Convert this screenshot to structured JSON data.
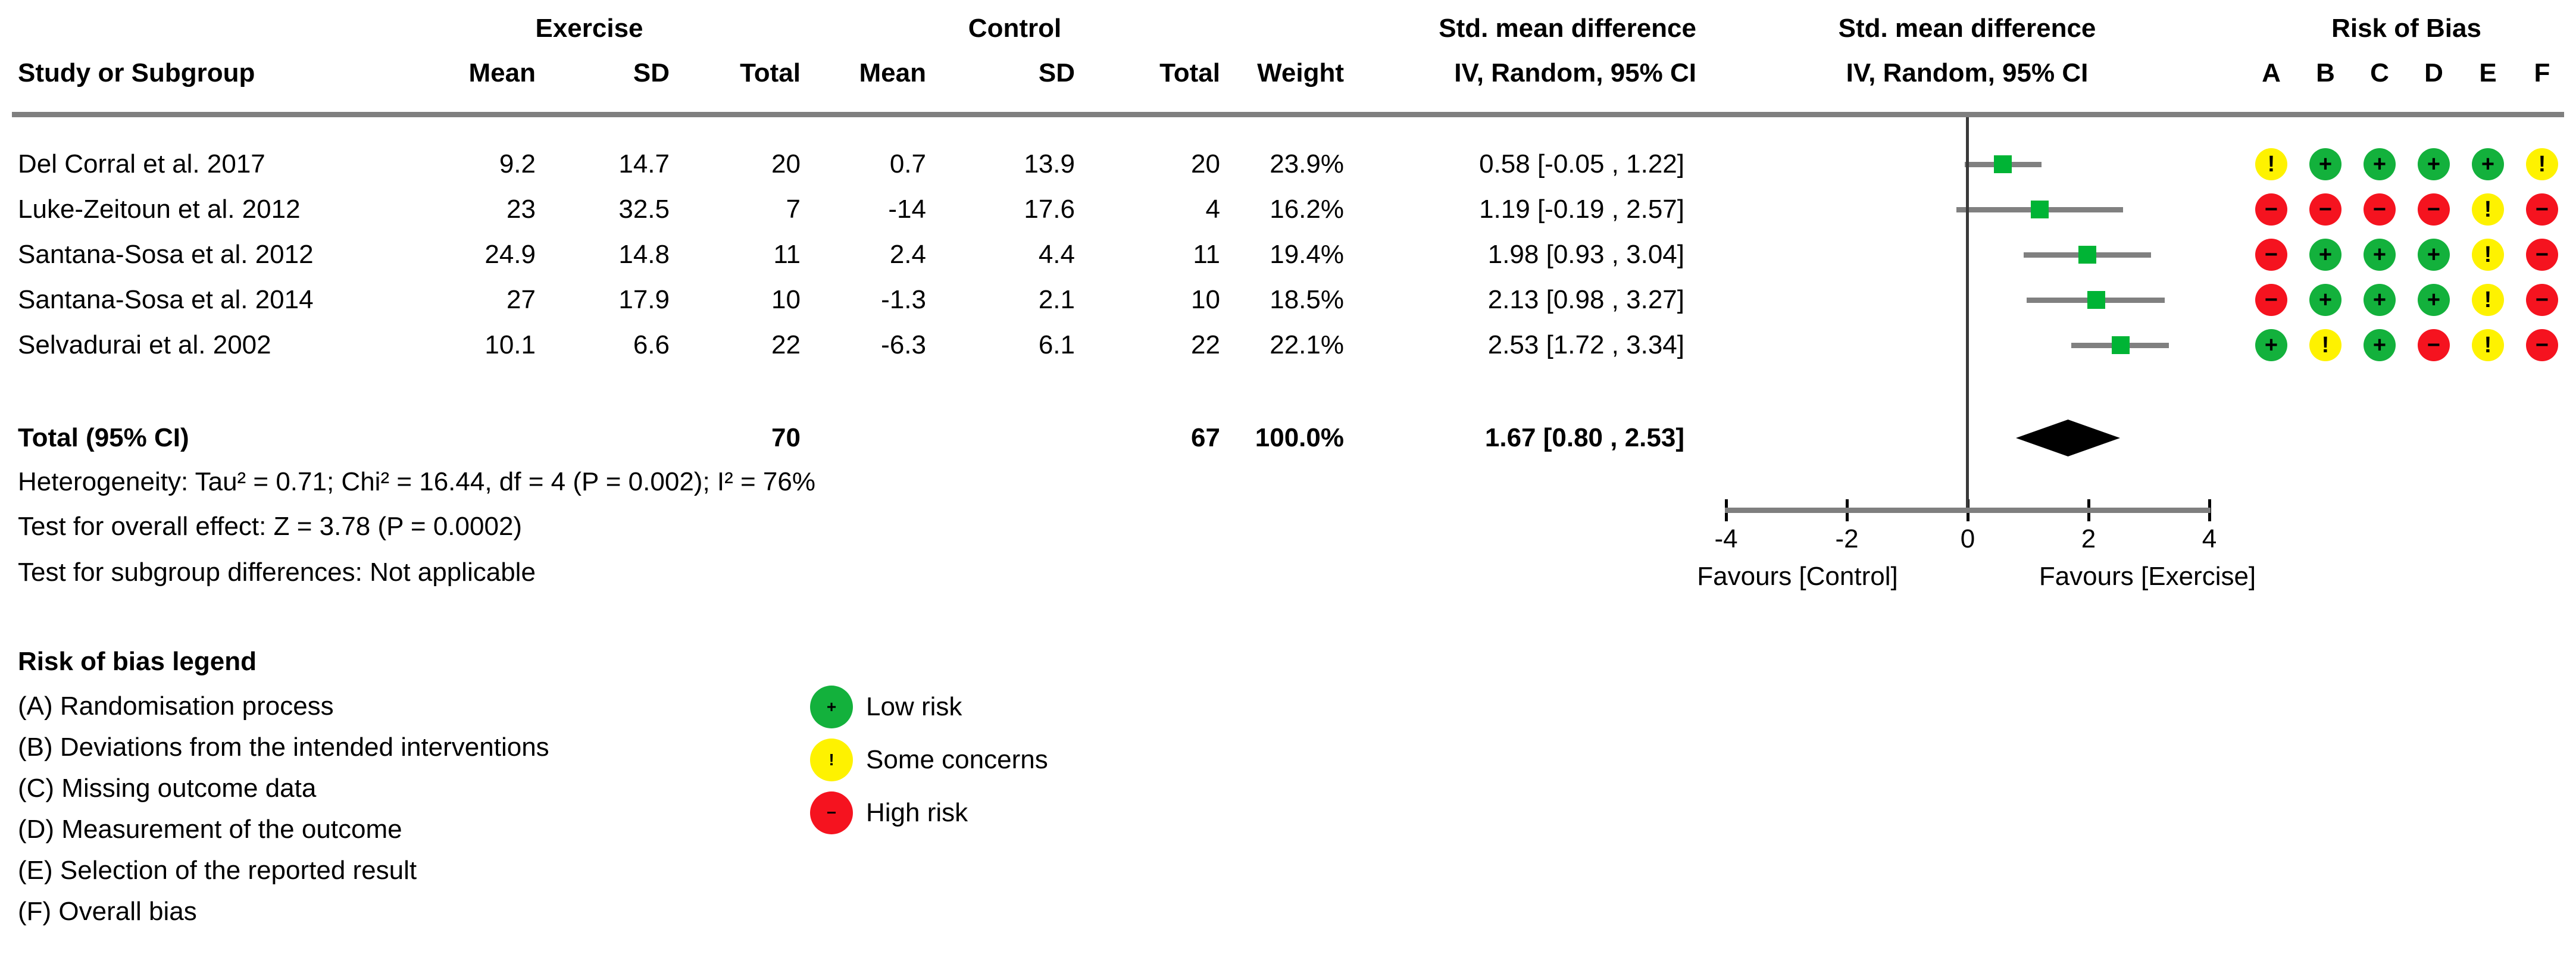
{
  "header": {
    "study_col": "Study or Subgroup",
    "exercise_group": "Exercise",
    "control_group": "Control",
    "mean": "Mean",
    "sd": "SD",
    "total": "Total",
    "weight": "Weight",
    "smd_title": "Std. mean difference",
    "smd_subtitle": "IV, Random, 95% CI",
    "plot_title": "Std. mean difference",
    "plot_subtitle": "IV, Random, 95% CI",
    "rob_title": "Risk of Bias",
    "rob_cols": [
      "A",
      "B",
      "C",
      "D",
      "E",
      "F"
    ]
  },
  "chart_data": {
    "type": "forest",
    "effect_label": "Std. mean difference, IV, Random, 95% CI",
    "studies": [
      {
        "name": "Del Corral et al. 2017",
        "ex_mean": "9.2",
        "ex_sd": "14.7",
        "ex_total": "20",
        "c_mean": "0.7",
        "c_sd": "13.9",
        "c_total": "20",
        "weight": "23.9%",
        "ci_text": "0.58 [-0.05 , 1.22]",
        "smd": 0.58,
        "ci_low": -0.05,
        "ci_high": 1.22,
        "risk_of_bias": [
          "some",
          "low",
          "low",
          "low",
          "low",
          "some"
        ]
      },
      {
        "name": "Luke-Zeitoun et al. 2012",
        "ex_mean": "23",
        "ex_sd": "32.5",
        "ex_total": "7",
        "c_mean": "-14",
        "c_sd": "17.6",
        "c_total": "4",
        "weight": "16.2%",
        "ci_text": "1.19 [-0.19 , 2.57]",
        "smd": 1.19,
        "ci_low": -0.19,
        "ci_high": 2.57,
        "risk_of_bias": [
          "high",
          "high",
          "high",
          "high",
          "some",
          "high"
        ]
      },
      {
        "name": "Santana-Sosa et al. 2012",
        "ex_mean": "24.9",
        "ex_sd": "14.8",
        "ex_total": "11",
        "c_mean": "2.4",
        "c_sd": "4.4",
        "c_total": "11",
        "weight": "19.4%",
        "ci_text": "1.98 [0.93 , 3.04]",
        "smd": 1.98,
        "ci_low": 0.93,
        "ci_high": 3.04,
        "risk_of_bias": [
          "high",
          "low",
          "low",
          "low",
          "some",
          "high"
        ]
      },
      {
        "name": "Santana-Sosa et al. 2014",
        "ex_mean": "27",
        "ex_sd": "17.9",
        "ex_total": "10",
        "c_mean": "-1.3",
        "c_sd": "2.1",
        "c_total": "10",
        "weight": "18.5%",
        "ci_text": "2.13 [0.98 , 3.27]",
        "smd": 2.13,
        "ci_low": 0.98,
        "ci_high": 3.27,
        "risk_of_bias": [
          "high",
          "low",
          "low",
          "low",
          "some",
          "high"
        ]
      },
      {
        "name": "Selvadurai et al. 2002",
        "ex_mean": "10.1",
        "ex_sd": "6.6",
        "ex_total": "22",
        "c_mean": "-6.3",
        "c_sd": "6.1",
        "c_total": "22",
        "weight": "22.1%",
        "ci_text": "2.53 [1.72 , 3.34]",
        "smd": 2.53,
        "ci_low": 1.72,
        "ci_high": 3.34,
        "risk_of_bias": [
          "low",
          "some",
          "low",
          "high",
          "some",
          "high"
        ]
      }
    ],
    "total": {
      "label": "Total (95% CI)",
      "ex_total": "70",
      "c_total": "67",
      "weight": "100.0%",
      "ci_text": "1.67 [0.80 , 2.53]",
      "smd": 1.67,
      "ci_low": 0.8,
      "ci_high": 2.53
    },
    "heterogeneity": "Heterogeneity: Tau² = 0.71; Chi² = 16.44, df = 4 (P = 0.002); I² = 76%",
    "overall_effect": "Test for overall effect: Z = 3.78 (P = 0.0002)",
    "subgroup_diff": "Test for subgroup differences: Not applicable",
    "axis": {
      "min": -4,
      "max": 4,
      "ticks": [
        -4,
        -2,
        0,
        2,
        4
      ],
      "left_label": "Favours [Control]",
      "right_label": "Favours [Exercise]"
    }
  },
  "rob_levels": {
    "low": {
      "glyph": "+",
      "color": "#13b13c",
      "label": "Low risk"
    },
    "some": {
      "glyph": "!",
      "color": "#fef200",
      "label": "Some concerns"
    },
    "high": {
      "glyph": "−",
      "color": "#f5131f",
      "label": "High risk"
    }
  },
  "legend": {
    "title": "Risk of bias legend",
    "items": [
      "(A) Randomisation process",
      "(B) Deviations from the intended interventions",
      "(C) Missing outcome data",
      "(D) Measurement of the outcome",
      "(E) Selection of the reported result",
      "(F) Overall bias"
    ],
    "keys": [
      "low",
      "some",
      "high"
    ]
  },
  "colors": {
    "square": "#00b435",
    "ci_line": "#808080",
    "axis_line": "#7f7f7f",
    "zero_line": "#3a3a3a",
    "diamond": "#000000",
    "header_rule": "#7f7f7f"
  }
}
